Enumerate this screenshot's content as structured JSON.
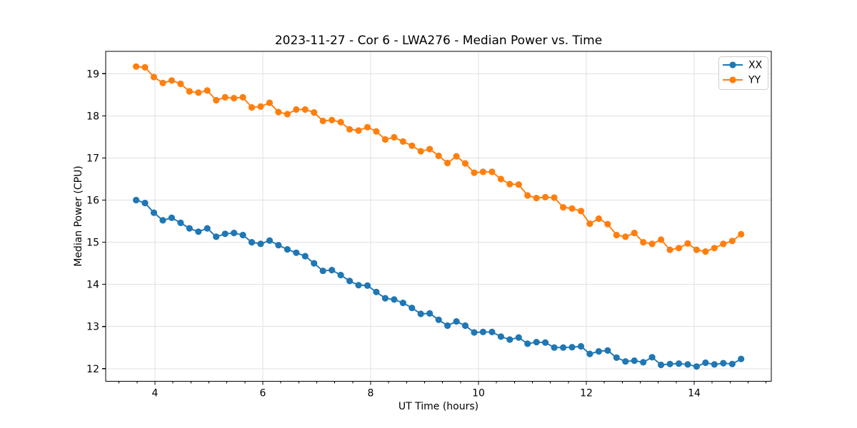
{
  "figure": {
    "background": "#ffffff"
  },
  "chart_data": {
    "type": "line",
    "title": "2023-11-27 - Cor 6 - LWA276 - Median Power vs. Time",
    "xlabel": "UT Time (hours)",
    "ylabel": "Median Power (CPU)",
    "xlim": [
      3.086,
      15.43
    ],
    "ylim": [
      11.7,
      19.53
    ],
    "xticks": [
      4,
      6,
      8,
      10,
      12,
      14
    ],
    "yticks": [
      12,
      13,
      14,
      15,
      16,
      17,
      18,
      19
    ],
    "x_minor_divisions": 6,
    "grid": true,
    "grid_color": "#e0e0e0",
    "axis_color": "#000000",
    "marker": "circle",
    "legend": {
      "position": "upper right"
    },
    "x": [
      3.65,
      3.815,
      3.98,
      4.145,
      4.31,
      4.475,
      4.64,
      4.805,
      4.97,
      5.135,
      5.3,
      5.465,
      5.63,
      5.795,
      5.96,
      6.125,
      6.29,
      6.455,
      6.62,
      6.785,
      6.95,
      7.115,
      7.28,
      7.445,
      7.61,
      7.775,
      7.94,
      8.105,
      8.27,
      8.435,
      8.6,
      8.765,
      8.93,
      9.095,
      9.26,
      9.425,
      9.59,
      9.755,
      9.92,
      10.085,
      10.25,
      10.415,
      10.58,
      10.745,
      10.91,
      11.075,
      11.24,
      11.405,
      11.57,
      11.735,
      11.9,
      12.065,
      12.23,
      12.395,
      12.56,
      12.725,
      12.89,
      13.055,
      13.22,
      13.385,
      13.55,
      13.715,
      13.88,
      14.045,
      14.21,
      14.375,
      14.54,
      14.705,
      14.87
    ],
    "series": [
      {
        "name": "XX",
        "color": "#1f77b4",
        "values": [
          16.0,
          15.93,
          15.7,
          15.52,
          15.58,
          15.46,
          15.33,
          15.25,
          15.33,
          15.13,
          15.2,
          15.22,
          15.17,
          15.0,
          14.96,
          15.04,
          14.93,
          14.83,
          14.75,
          14.67,
          14.5,
          14.32,
          14.34,
          14.22,
          14.08,
          13.98,
          13.97,
          13.82,
          13.67,
          13.64,
          13.56,
          13.44,
          13.3,
          13.31,
          13.16,
          13.02,
          13.12,
          13.02,
          12.86,
          12.87,
          12.87,
          12.76,
          12.69,
          12.74,
          12.59,
          12.63,
          12.62,
          12.5,
          12.5,
          12.51,
          12.53,
          12.35,
          12.41,
          12.43,
          12.26,
          12.17,
          12.19,
          12.15,
          12.27,
          12.09,
          12.11,
          12.12,
          12.1,
          12.05,
          12.14,
          12.1,
          12.13,
          12.11,
          12.23
        ]
      },
      {
        "name": "YY",
        "color": "#ff7f0e",
        "values": [
          19.17,
          19.15,
          18.92,
          18.78,
          18.84,
          18.76,
          18.58,
          18.55,
          18.6,
          18.37,
          18.44,
          18.42,
          18.44,
          18.2,
          18.22,
          18.31,
          18.09,
          18.04,
          18.15,
          18.15,
          18.08,
          17.88,
          17.9,
          17.85,
          17.68,
          17.65,
          17.73,
          17.63,
          17.44,
          17.49,
          17.39,
          17.29,
          17.16,
          17.21,
          17.05,
          16.88,
          17.04,
          16.87,
          16.65,
          16.67,
          16.67,
          16.5,
          16.38,
          16.37,
          16.11,
          16.05,
          16.07,
          16.06,
          15.83,
          15.8,
          15.74,
          15.44,
          15.56,
          15.43,
          15.17,
          15.13,
          15.22,
          15.0,
          14.96,
          15.06,
          14.82,
          14.86,
          14.97,
          14.82,
          14.78,
          14.86,
          14.96,
          15.03,
          15.19
        ]
      }
    ]
  }
}
